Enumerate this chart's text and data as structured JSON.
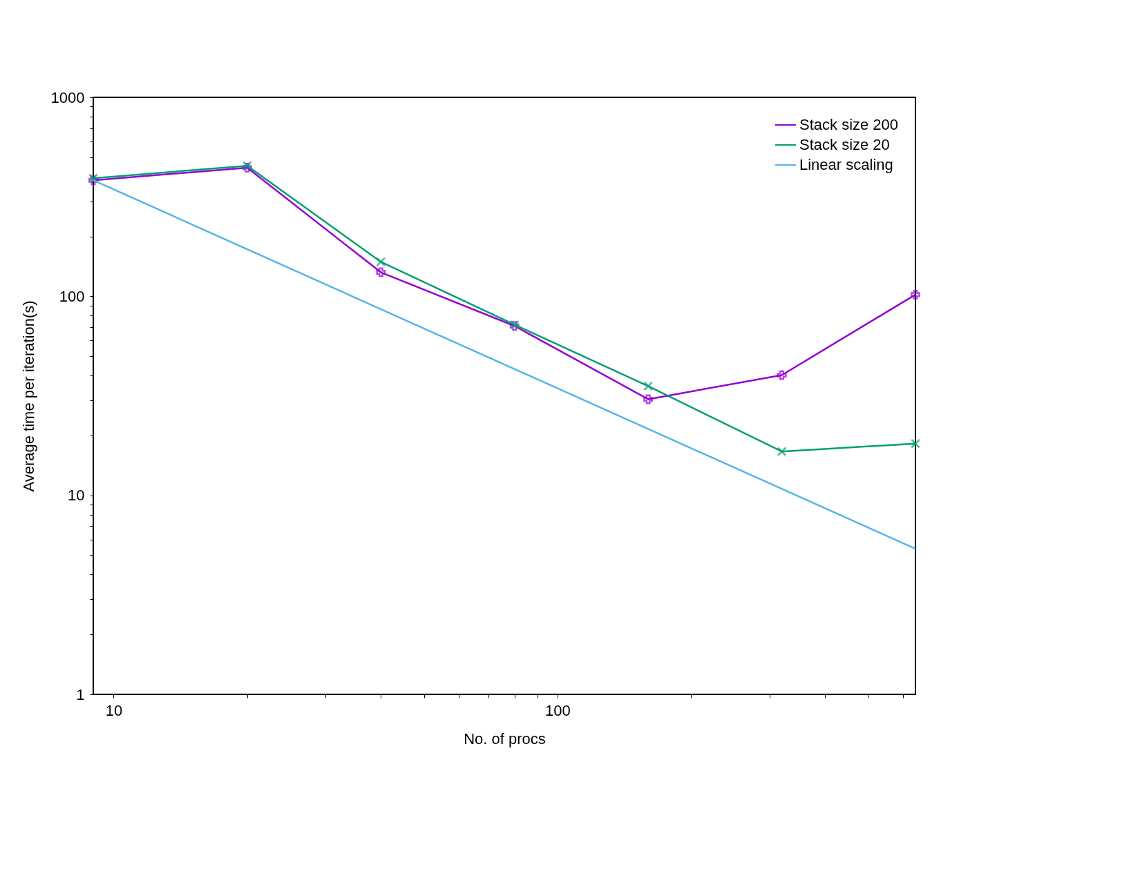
{
  "chart_data": {
    "type": "line",
    "xlabel": "No. of procs",
    "ylabel": "Average time per iteration(s)",
    "log": "xy",
    "grid": false,
    "legend": "top right",
    "xlim": [
      9,
      640
    ],
    "ylim": [
      1,
      1000
    ],
    "xticks": [
      10,
      {
        "value": 20,
        "label": null
      },
      {
        "value": 30,
        "label": null
      },
      {
        "value": 40,
        "label": null
      },
      {
        "value": 50,
        "label": null
      },
      {
        "value": 60,
        "label": null
      },
      {
        "value": 70,
        "label": null
      },
      {
        "value": 80,
        "label": null
      },
      {
        "value": 90,
        "label": null
      },
      100,
      {
        "value": 200,
        "label": null
      },
      {
        "value": 300,
        "label": null
      },
      {
        "value": 400,
        "label": null
      },
      {
        "value": 500,
        "label": null
      },
      {
        "value": 600,
        "label": null
      }
    ],
    "yticks": [
      1,
      {
        "value": 2,
        "label": null
      },
      {
        "value": 3,
        "label": null
      },
      {
        "value": 4,
        "label": null
      },
      {
        "value": 5,
        "label": null
      },
      {
        "value": 6,
        "label": null
      },
      {
        "value": 7,
        "label": null
      },
      {
        "value": 8,
        "label": null
      },
      {
        "value": 9,
        "label": null
      },
      10,
      {
        "value": 20,
        "label": null
      },
      {
        "value": 30,
        "label": null
      },
      {
        "value": 40,
        "label": null
      },
      {
        "value": 50,
        "label": null
      },
      {
        "value": 60,
        "label": null
      },
      {
        "value": 70,
        "label": null
      },
      {
        "value": 80,
        "label": null
      },
      {
        "value": 90,
        "label": null
      },
      100,
      {
        "value": 200,
        "label": null
      },
      {
        "value": 300,
        "label": null
      },
      {
        "value": 400,
        "label": null
      },
      {
        "value": 500,
        "label": null
      },
      {
        "value": 600,
        "label": null
      },
      {
        "value": 700,
        "label": null
      },
      {
        "value": 800,
        "label": null
      },
      {
        "value": 900,
        "label": null
      },
      1000
    ],
    "x": [
      9,
      20,
      40,
      80,
      160,
      320,
      640
    ],
    "series": [
      {
        "name": "Stack size 200",
        "color": "#9400d3",
        "marker": "cross",
        "values": [
          383,
          443,
          132,
          71,
          30.4,
          40.2,
          102
        ]
      },
      {
        "name": "Stack size 20",
        "color": "#009e73",
        "marker": "x",
        "values": [
          392,
          453,
          149,
          72,
          35.4,
          16.6,
          18.2
        ]
      },
      {
        "name": "Linear scaling",
        "color": "#56b4e9",
        "marker": "none",
        "x": [
          9,
          640
        ],
        "values": [
          383,
          5.39
        ]
      }
    ]
  }
}
